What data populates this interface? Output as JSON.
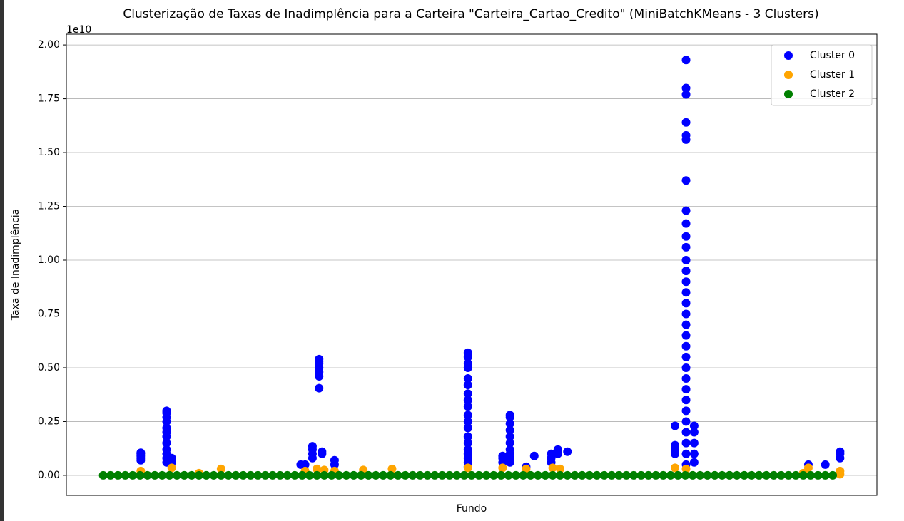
{
  "chart_data": {
    "type": "scatter",
    "title": "Clusterização de Taxas de Inadimplência para a Carteira \"Carteira_Cartao_Credito\" (MiniBatchKMeans - 3 Clusters)",
    "x_label": "Fundo",
    "y_label": "Taxa de Inadimplência",
    "y_offset_label": "1e10",
    "xlim": [
      -5,
      105
    ],
    "ylim": [
      -0.093,
      2.05
    ],
    "yticks": [
      {
        "value": 0,
        "label": "0.00"
      },
      {
        "value": 0.25,
        "label": "0.25"
      },
      {
        "value": 0.5,
        "label": "0.50"
      },
      {
        "value": 0.75,
        "label": "0.75"
      },
      {
        "value": 1,
        "label": "1.00"
      },
      {
        "value": 1.25,
        "label": "1.25"
      },
      {
        "value": 1.5,
        "label": "1.50"
      },
      {
        "value": 1.75,
        "label": "1.75"
      },
      {
        "value": 2,
        "label": "2.00"
      }
    ],
    "grid": true,
    "legend": "upper right",
    "series": [
      {
        "name": "Cluster 0",
        "color": "blue",
        "x": [
          5.1,
          5.1,
          5.1,
          5.1,
          5.1,
          8.6,
          8.6,
          8.6,
          8.6,
          8.6,
          8.6,
          8.6,
          8.6,
          8.6,
          8.6,
          8.6,
          8.6,
          9.3,
          9.3,
          26.8,
          27.4,
          28.4,
          28.4,
          28.4,
          28.4,
          29.3,
          29.3,
          29.3,
          29.3,
          29.3,
          29.3,
          29.3,
          29.7,
          29.7,
          31.4,
          31.4,
          49.5,
          49.5,
          49.5,
          49.5,
          49.5,
          49.5,
          49.5,
          49.5,
          49.5,
          49.5,
          49.5,
          49.5,
          49.5,
          49.5,
          49.5,
          49.5,
          49.5,
          49.5,
          49.5,
          54.2,
          54.2,
          54.2,
          55.2,
          55.2,
          55.2,
          55.2,
          55.2,
          55.2,
          55.2,
          55.2,
          55.2,
          55.2,
          57.4,
          58.5,
          60.8,
          60.8,
          60.8,
          61.7,
          61.7,
          63.0,
          77.6,
          77.6,
          77.6,
          77.6,
          79.1,
          79.1,
          79.1,
          79.1,
          79.1,
          79.1,
          79.1,
          79.1,
          79.1,
          79.1,
          79.1,
          79.1,
          79.1,
          79.1,
          79.1,
          79.1,
          79.1,
          79.1,
          79.1,
          79.1,
          79.1,
          79.1,
          79.1,
          79.1,
          79.1,
          79.1,
          79.1,
          79.1,
          79.1,
          79.1,
          79.1,
          80.2,
          80.2,
          80.2,
          80.2,
          80.2,
          95.7,
          98.0,
          100.0,
          100.0,
          100.0
        ],
        "values": [
          0.105,
          0.1,
          0.09,
          0.08,
          0.07,
          0.3,
          0.29,
          0.27,
          0.25,
          0.22,
          0.2,
          0.18,
          0.15,
          0.12,
          0.1,
          0.08,
          0.06,
          0.08,
          0.06,
          0.05,
          0.05,
          0.135,
          0.12,
          0.1,
          0.08,
          0.54,
          0.53,
          0.52,
          0.5,
          0.48,
          0.46,
          0.405,
          0.11,
          0.1,
          0.07,
          0.05,
          0.57,
          0.55,
          0.52,
          0.5,
          0.45,
          0.42,
          0.38,
          0.35,
          0.32,
          0.28,
          0.25,
          0.22,
          0.18,
          0.15,
          0.12,
          0.1,
          0.08,
          0.06,
          0.04,
          0.09,
          0.08,
          0.06,
          0.28,
          0.27,
          0.24,
          0.21,
          0.18,
          0.15,
          0.12,
          0.1,
          0.08,
          0.06,
          0.04,
          0.09,
          0.1,
          0.08,
          0.06,
          0.12,
          0.1,
          0.11,
          0.23,
          0.14,
          0.12,
          0.1,
          1.93,
          1.8,
          1.77,
          1.64,
          1.58,
          1.56,
          1.37,
          1.23,
          1.17,
          1.11,
          1.06,
          1.0,
          0.95,
          0.9,
          0.85,
          0.8,
          0.75,
          0.7,
          0.65,
          0.6,
          0.55,
          0.5,
          0.45,
          0.4,
          0.35,
          0.3,
          0.25,
          0.2,
          0.15,
          0.1,
          0.05,
          0.23,
          0.2,
          0.15,
          0.1,
          0.06,
          0.05,
          0.05,
          0.11,
          0.1,
          0.08
        ]
      },
      {
        "name": "Cluster 1",
        "color": "orange",
        "x": [
          5.1,
          9.3,
          13.0,
          16.0,
          27.4,
          29.0,
          30.0,
          31.4,
          35.3,
          39.2,
          49.5,
          54.2,
          57.4,
          61.0,
          62.0,
          77.6,
          79.1,
          95.0,
          95.7,
          100.0,
          100.0
        ],
        "values": [
          0.02,
          0.035,
          0.01,
          0.03,
          0.02,
          0.03,
          0.025,
          0.02,
          0.025,
          0.03,
          0.035,
          0.035,
          0.03,
          0.035,
          0.03,
          0.035,
          0.03,
          0.01,
          0.035,
          0.005,
          0.02
        ]
      },
      {
        "name": "Cluster 2",
        "color": "green",
        "x": [
          0,
          1,
          2,
          3,
          4,
          5,
          6,
          7,
          8,
          9,
          10,
          11,
          12,
          13,
          14,
          15,
          16,
          17,
          18,
          19,
          20,
          21,
          22,
          23,
          24,
          25,
          26,
          27,
          28,
          29,
          30,
          31,
          32,
          33,
          34,
          35,
          36,
          37,
          38,
          39,
          40,
          41,
          42,
          43,
          44,
          45,
          46,
          47,
          48,
          49,
          50,
          51,
          52,
          53,
          54,
          55,
          56,
          57,
          58,
          59,
          60,
          61,
          62,
          63,
          64,
          65,
          66,
          67,
          68,
          69,
          70,
          71,
          72,
          73,
          74,
          75,
          76,
          77,
          78,
          79,
          80,
          81,
          82,
          83,
          84,
          85,
          86,
          87,
          88,
          89,
          90,
          91,
          92,
          93,
          94,
          95,
          96,
          97,
          98,
          99
        ],
        "values": [
          0,
          0,
          0,
          0,
          0,
          0,
          0,
          0,
          0,
          0,
          0,
          0,
          0,
          0,
          0,
          0,
          0,
          0,
          0,
          0,
          0,
          0,
          0,
          0,
          0,
          0,
          0,
          0,
          0,
          0,
          0,
          0,
          0,
          0,
          0,
          0,
          0,
          0,
          0,
          0,
          0,
          0,
          0,
          0,
          0,
          0,
          0,
          0,
          0,
          0,
          0,
          0,
          0,
          0,
          0,
          0,
          0,
          0,
          0,
          0,
          0,
          0,
          0,
          0,
          0,
          0,
          0,
          0,
          0,
          0,
          0,
          0,
          0,
          0,
          0,
          0,
          0,
          0,
          0,
          0,
          0,
          0,
          0,
          0,
          0,
          0,
          0,
          0,
          0,
          0,
          0,
          0,
          0,
          0,
          0,
          0,
          0,
          0,
          0,
          0
        ]
      }
    ]
  }
}
